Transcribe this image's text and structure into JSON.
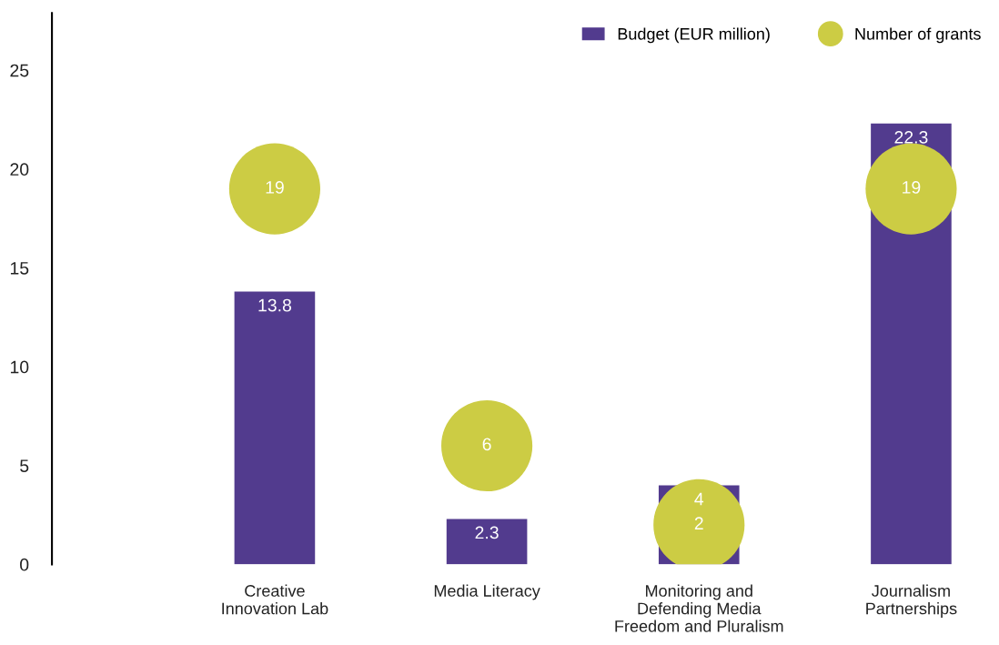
{
  "chart_data": {
    "type": "bar",
    "categories": [
      "Creative\nInnovation Lab",
      "Media Literacy",
      "Monitoring and\nDefending Media\nFreedom and Pluralism",
      "Journalism\nPartnerships"
    ],
    "series": [
      {
        "name": "Budget (EUR million)",
        "color": "#523b8e",
        "values": [
          13.8,
          2.3,
          4,
          22.3
        ]
      },
      {
        "name": "Number of grants",
        "type": "scatter",
        "marker": "circle",
        "color": "#cccc44",
        "values": [
          19,
          6,
          2,
          19
        ]
      }
    ],
    "ylim": [
      0,
      27.9
    ],
    "yticks": [
      0,
      5,
      10,
      15,
      20,
      25
    ],
    "legend": "top right",
    "data_labels": true,
    "grid": false
  }
}
